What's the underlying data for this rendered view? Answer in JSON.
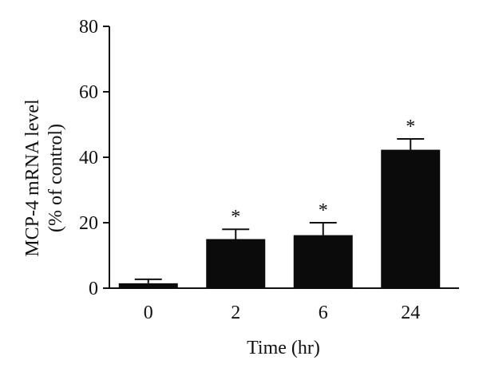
{
  "chart_data": {
    "type": "bar",
    "categories": [
      "0",
      "2",
      "6",
      "24"
    ],
    "values": [
      1.5,
      15.0,
      16.2,
      42.3
    ],
    "errors": [
      1.2,
      3.0,
      3.8,
      3.3
    ],
    "significance": [
      "",
      "*",
      "*",
      "*"
    ],
    "ylim": [
      0,
      80
    ],
    "yticks": [
      0,
      20,
      40,
      60,
      80
    ],
    "xlabel": "Time (hr)",
    "ylabel_line1": "MCP-4 mRNA level",
    "ylabel_line2": "(% of control)",
    "grid": false,
    "legend": "none",
    "bar_color": "#0b0b0b"
  }
}
